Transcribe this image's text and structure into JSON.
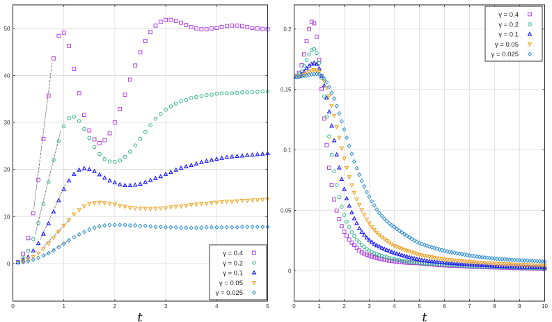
{
  "chart_data": [
    {
      "type": "scatter",
      "xlabel": "t",
      "ylabel": "",
      "xlim": [
        0,
        5
      ],
      "ylim": [
        -8,
        55
      ],
      "xticks": [
        0,
        1,
        2,
        3,
        4,
        5
      ],
      "yticks": [
        0,
        10,
        20,
        30,
        40,
        50
      ],
      "grid": true,
      "legend_position": "bottom-right",
      "x": [
        0.1,
        0.2,
        0.3,
        0.4,
        0.5,
        0.6,
        0.7,
        0.8,
        0.9,
        1.0,
        1.1,
        1.2,
        1.3,
        1.4,
        1.5,
        1.6,
        1.7,
        1.8,
        1.9,
        2.0,
        2.1,
        2.2,
        2.3,
        2.4,
        2.5,
        2.6,
        2.7,
        2.8,
        2.9,
        3.0,
        3.1,
        3.2,
        3.3,
        3.4,
        3.5,
        3.6,
        3.7,
        3.8,
        3.9,
        4.0,
        4.1,
        4.2,
        4.3,
        4.4,
        4.5,
        4.6,
        4.7,
        4.8,
        4.9,
        5.0
      ],
      "series": [
        {
          "name": "γ = 0.4",
          "marker": "square",
          "color": "#b040e0",
          "values": [
            0.3,
            2.1,
            5.4,
            10.7,
            17.8,
            26.5,
            35.7,
            43.6,
            48.4,
            49.1,
            46.3,
            41.4,
            36.2,
            31.6,
            28.3,
            26.4,
            25.6,
            26.2,
            27.7,
            30.0,
            32.8,
            35.9,
            39.1,
            42.1,
            44.9,
            47.3,
            49.2,
            50.6,
            51.4,
            51.8,
            51.8,
            51.6,
            51.2,
            50.7,
            50.3,
            50.0,
            49.8,
            49.8,
            50.0,
            50.1,
            50.3,
            50.5,
            50.6,
            50.6,
            50.5,
            50.3,
            50.1,
            50.0,
            49.9,
            49.8
          ]
        },
        {
          "name": "γ = 0.2",
          "marker": "circle",
          "color": "#2db38a",
          "values": [
            0.3,
            1.2,
            2.7,
            5.2,
            8.6,
            12.7,
            17.3,
            22.0,
            26.0,
            29.2,
            30.9,
            31.2,
            30.3,
            28.6,
            26.7,
            24.8,
            23.3,
            22.2,
            21.7,
            21.6,
            21.9,
            22.7,
            23.8,
            25.1,
            26.5,
            28.0,
            29.4,
            30.8,
            31.8,
            32.7,
            33.4,
            34.0,
            34.5,
            34.8,
            35.2,
            35.4,
            35.6,
            35.8,
            35.9,
            36.1,
            36.2,
            36.2,
            36.2,
            36.3,
            36.4,
            36.4,
            36.5,
            36.5,
            36.6,
            36.6
          ]
        },
        {
          "name": "γ = 0.1",
          "marker": "triangle-up",
          "color": "#2020ff",
          "values": [
            0.2,
            0.8,
            1.4,
            2.7,
            4.3,
            6.3,
            8.5,
            11.0,
            13.4,
            15.8,
            17.6,
            19.0,
            19.9,
            20.2,
            20.0,
            19.6,
            18.9,
            18.2,
            17.6,
            17.2,
            16.8,
            16.6,
            16.6,
            16.7,
            16.9,
            17.3,
            17.7,
            18.1,
            18.5,
            19.0,
            19.4,
            19.9,
            20.3,
            20.6,
            20.9,
            21.2,
            21.5,
            21.8,
            22.0,
            22.2,
            22.4,
            22.6,
            22.7,
            22.8,
            22.9,
            23.0,
            23.1,
            23.2,
            23.3,
            23.4
          ]
        },
        {
          "name": "γ = 0.05",
          "marker": "triangle-down",
          "color": "#f0a830",
          "values": [
            0.2,
            0.5,
            0.9,
            1.4,
            2.2,
            3.1,
            4.3,
            5.5,
            6.8,
            8.1,
            9.3,
            10.5,
            11.4,
            12.2,
            12.7,
            12.9,
            13.0,
            12.9,
            12.8,
            12.6,
            12.3,
            12.1,
            11.9,
            11.8,
            11.7,
            11.7,
            11.6,
            11.7,
            11.8,
            11.8,
            12.0,
            12.1,
            12.2,
            12.3,
            12.5,
            12.6,
            12.7,
            12.8,
            12.9,
            13.0,
            13.1,
            13.2,
            13.2,
            13.3,
            13.4,
            13.4,
            13.5,
            13.5,
            13.6,
            13.7
          ]
        },
        {
          "name": "γ = 0.025",
          "marker": "diamond",
          "color": "#2b8cd6",
          "values": [
            0.2,
            0.3,
            0.5,
            0.8,
            1.2,
            1.7,
            2.2,
            2.8,
            3.5,
            4.2,
            4.9,
            5.6,
            6.2,
            6.7,
            7.2,
            7.6,
            7.9,
            8.1,
            8.2,
            8.2,
            8.2,
            8.2,
            8.1,
            8.1,
            8.0,
            8.0,
            7.9,
            7.8,
            7.8,
            7.7,
            7.7,
            7.7,
            7.6,
            7.6,
            7.6,
            7.6,
            7.6,
            7.7,
            7.7,
            7.7,
            7.7,
            7.7,
            7.7,
            7.7,
            7.8,
            7.8,
            7.8,
            7.8,
            7.8,
            7.8
          ]
        }
      ],
      "fit_lines": [
        {
          "from": [
            0.41,
            11.6
          ],
          "to": [
            0.77,
            42.7
          ]
        },
        {
          "from": [
            0.44,
            6.3
          ],
          "to": [
            0.94,
            28.3
          ]
        },
        {
          "from": [
            0.54,
            5.1
          ],
          "to": [
            1.03,
            16.9
          ]
        },
        {
          "from": [
            0.55,
            2.9
          ],
          "to": [
            1.13,
            9.6
          ]
        },
        {
          "from": [
            0.61,
            1.6
          ],
          "to": [
            1.14,
            5.3
          ]
        }
      ]
    },
    {
      "type": "scatter",
      "xlabel": "t",
      "ylabel": "",
      "xlim": [
        0,
        10
      ],
      "ylim": [
        -0.025,
        0.22
      ],
      "xticks": [
        0,
        1,
        2,
        3,
        4,
        5,
        6,
        7,
        8,
        9,
        10
      ],
      "yticks": [
        0,
        0.05,
        0.1,
        0.15,
        0.2
      ],
      "grid": true,
      "legend_position": "top-right",
      "x": [
        0.1,
        0.2,
        0.3,
        0.4,
        0.5,
        0.6,
        0.7,
        0.8,
        0.9,
        1.0,
        1.1,
        1.2,
        1.3,
        1.4,
        1.5,
        1.6,
        1.7,
        1.8,
        1.9,
        2.0,
        2.1,
        2.2,
        2.3,
        2.4,
        2.5,
        2.6,
        2.7,
        2.8,
        2.9,
        3.0,
        3.1,
        3.2,
        3.3,
        3.4,
        3.5,
        3.6,
        3.7,
        3.8,
        3.9,
        4.0,
        4.1,
        4.2,
        4.3,
        4.4,
        4.5,
        4.6,
        4.7,
        4.8,
        4.9,
        5.0,
        5.1,
        5.2,
        5.3,
        5.4,
        5.5,
        5.6,
        5.7,
        5.8,
        5.9,
        6.0,
        6.1,
        6.2,
        6.3,
        6.4,
        6.5,
        6.6,
        6.7,
        6.8,
        6.9,
        7.0,
        7.1,
        7.2,
        7.3,
        7.4,
        7.5,
        7.6,
        7.7,
        7.8,
        7.9,
        8.0,
        8.1,
        8.2,
        8.3,
        8.4,
        8.5,
        8.6,
        8.7,
        8.8,
        8.9,
        9.0,
        9.1,
        9.2,
        9.3,
        9.4,
        9.5,
        9.6,
        9.7,
        9.8,
        9.9,
        10.0
      ],
      "series": [
        {
          "name": "γ = 0.4",
          "marker": "square",
          "color": "#b040e0",
          "values": [
            0.161,
            0.1638,
            0.17,
            0.179,
            0.19,
            0.1998,
            0.206,
            0.2048,
            0.1937,
            0.1745,
            0.1506,
            0.126,
            0.104,
            0.0853,
            0.071,
            0.0591,
            0.0499,
            0.0428,
            0.037,
            0.0324,
            0.0292,
            0.0259,
            0.0234,
            0.0215,
            0.0192,
            0.0169,
            0.0153,
            0.0143,
            0.0134,
            0.0126,
            0.0119,
            0.0113,
            0.0107,
            0.0102,
            0.0097,
            0.0093,
            0.0089,
            0.0085,
            0.0082,
            0.0079,
            0.0076,
            0.0074,
            0.0072,
            0.007,
            0.0068,
            0.0067,
            0.0066,
            0.0065,
            0.0064,
            0.0063,
            0.0061,
            0.0059,
            0.0057,
            0.0055,
            0.0054,
            0.0052,
            0.005,
            0.0049,
            0.0047,
            0.0046,
            0.0045,
            0.0044,
            0.0043,
            0.0042,
            0.0041,
            0.004,
            0.0039,
            0.0038,
            0.0037,
            0.0036,
            0.0035,
            0.0034,
            0.0034,
            0.0033,
            0.0032,
            0.0032,
            0.0031,
            0.003,
            0.003,
            0.0029,
            0.0028,
            0.0028,
            0.0027,
            0.0027,
            0.0026,
            0.0026,
            0.0025,
            0.0024,
            0.0024,
            0.0023,
            0.0023,
            0.0022,
            0.0022,
            0.0022,
            0.0021,
            0.0021,
            0.002,
            0.002,
            0.0019,
            0.0019
          ]
        },
        {
          "name": "γ = 0.2",
          "marker": "circle",
          "color": "#2db38a",
          "values": [
            0.161,
            0.1625,
            0.165,
            0.1697,
            0.1745,
            0.179,
            0.1826,
            0.1834,
            0.18,
            0.172,
            0.1596,
            0.1442,
            0.1275,
            0.1112,
            0.0961,
            0.0825,
            0.071,
            0.061,
            0.0531,
            0.0462,
            0.0407,
            0.0361,
            0.032,
            0.0288,
            0.0259,
            0.0236,
            0.0215,
            0.0197,
            0.018,
            0.0168,
            0.0157,
            0.0147,
            0.0139,
            0.0131,
            0.0124,
            0.0118,
            0.0112,
            0.0107,
            0.0102,
            0.0097,
            0.0093,
            0.0089,
            0.0085,
            0.0082,
            0.0079,
            0.0076,
            0.0073,
            0.0071,
            0.0069,
            0.0067,
            0.0065,
            0.0063,
            0.0061,
            0.006,
            0.0058,
            0.0057,
            0.0055,
            0.0054,
            0.0052,
            0.0051,
            0.005,
            0.0049,
            0.0048,
            0.0047,
            0.0046,
            0.0045,
            0.0044,
            0.0043,
            0.0041,
            0.004,
            0.0039,
            0.0038,
            0.0038,
            0.0037,
            0.0036,
            0.0035,
            0.0034,
            0.0034,
            0.0033,
            0.0032,
            0.0032,
            0.0031,
            0.0031,
            0.003,
            0.003,
            0.0029,
            0.0029,
            0.0028,
            0.0028,
            0.0027,
            0.0027,
            0.0026,
            0.0026,
            0.0025,
            0.0025,
            0.0024,
            0.0024,
            0.0023,
            0.0023,
            0.0022
          ]
        },
        {
          "name": "γ = 0.1",
          "marker": "triangle-up",
          "color": "#2020ff",
          "values": [
            0.1605,
            0.161,
            0.1625,
            0.1648,
            0.1674,
            0.1695,
            0.171,
            0.172,
            0.1709,
            0.1674,
            0.1611,
            0.1532,
            0.1431,
            0.1316,
            0.1199,
            0.1078,
            0.0961,
            0.0853,
            0.0758,
            0.0675,
            0.0598,
            0.0537,
            0.0482,
            0.0433,
            0.0393,
            0.0351,
            0.0322,
            0.0297,
            0.0274,
            0.0255,
            0.0238,
            0.0222,
            0.021,
            0.02,
            0.019,
            0.0181,
            0.0172,
            0.0164,
            0.0156,
            0.0148,
            0.0142,
            0.0136,
            0.013,
            0.0124,
            0.0118,
            0.0112,
            0.0107,
            0.0102,
            0.0097,
            0.0092,
            0.0089,
            0.0086,
            0.0083,
            0.008,
            0.0078,
            0.0076,
            0.0074,
            0.0072,
            0.007,
            0.0068,
            0.0066,
            0.0064,
            0.0063,
            0.0061,
            0.006,
            0.0058,
            0.0057,
            0.0055,
            0.0054,
            0.0052,
            0.0051,
            0.005,
            0.0049,
            0.0048,
            0.0047,
            0.0046,
            0.0045,
            0.0044,
            0.0042,
            0.0041,
            0.004,
            0.0039,
            0.0038,
            0.0038,
            0.0037,
            0.0036,
            0.0035,
            0.0035,
            0.0034,
            0.0033,
            0.0033,
            0.0032,
            0.0032,
            0.0031,
            0.003,
            0.003,
            0.0029,
            0.0028,
            0.0028,
            0.0027
          ]
        },
        {
          "name": "γ = 0.05",
          "marker": "triangle-down",
          "color": "#f0a830",
          "values": [
            0.1605,
            0.161,
            0.1615,
            0.1625,
            0.1635,
            0.1645,
            0.1655,
            0.1663,
            0.1658,
            0.1645,
            0.1615,
            0.1569,
            0.1515,
            0.1448,
            0.1366,
            0.1285,
            0.1193,
            0.1103,
            0.1015,
            0.093,
            0.0853,
            0.0777,
            0.071,
            0.0646,
            0.0594,
            0.0547,
            0.0505,
            0.0465,
            0.0428,
            0.0395,
            0.0366,
            0.034,
            0.0318,
            0.0298,
            0.028,
            0.0264,
            0.0249,
            0.0235,
            0.0221,
            0.0208,
            0.0199,
            0.0191,
            0.0183,
            0.0175,
            0.0168,
            0.0161,
            0.0154,
            0.0148,
            0.0141,
            0.0134,
            0.013,
            0.0126,
            0.0122,
            0.0118,
            0.0114,
            0.011,
            0.0106,
            0.0103,
            0.01,
            0.0096,
            0.0094,
            0.0092,
            0.009,
            0.0088,
            0.0086,
            0.0084,
            0.0082,
            0.008,
            0.0078,
            0.0076,
            0.0074,
            0.0073,
            0.0071,
            0.007,
            0.0069,
            0.0067,
            0.0066,
            0.0065,
            0.0063,
            0.0062,
            0.0061,
            0.006,
            0.0059,
            0.0058,
            0.0057,
            0.0056,
            0.0055,
            0.0054,
            0.0053,
            0.0052,
            0.0051,
            0.005,
            0.005,
            0.0049,
            0.0048,
            0.0047,
            0.0046,
            0.0046,
            0.0045,
            0.0044
          ]
        },
        {
          "name": "γ = 0.025",
          "marker": "diamond",
          "color": "#2b8cd6",
          "values": [
            0.1605,
            0.1606,
            0.161,
            0.1613,
            0.1617,
            0.162,
            0.1624,
            0.1627,
            0.1628,
            0.1627,
            0.1615,
            0.159,
            0.156,
            0.1521,
            0.1473,
            0.1425,
            0.1364,
            0.1302,
            0.1237,
            0.117,
            0.1101,
            0.1034,
            0.0968,
            0.0905,
            0.085,
            0.0796,
            0.0744,
            0.0698,
            0.0652,
            0.0614,
            0.0575,
            0.0541,
            0.0508,
            0.048,
            0.0455,
            0.0432,
            0.0411,
            0.0393,
            0.0377,
            0.0364,
            0.0348,
            0.0332,
            0.0318,
            0.0304,
            0.029,
            0.0277,
            0.0264,
            0.0252,
            0.0241,
            0.023,
            0.0222,
            0.0215,
            0.0208,
            0.0201,
            0.0195,
            0.0189,
            0.0183,
            0.0177,
            0.0172,
            0.0166,
            0.0162,
            0.0158,
            0.0154,
            0.015,
            0.0146,
            0.0142,
            0.0138,
            0.0135,
            0.0131,
            0.0128,
            0.0125,
            0.0122,
            0.0119,
            0.0116,
            0.0113,
            0.0111,
            0.0109,
            0.0106,
            0.0104,
            0.0102,
            0.01,
            0.0099,
            0.0097,
            0.0096,
            0.0094,
            0.0093,
            0.0092,
            0.009,
            0.0089,
            0.0088,
            0.0087,
            0.0086,
            0.0085,
            0.0084,
            0.0083,
            0.0082,
            0.0081,
            0.008,
            0.0078,
            0.0077
          ]
        }
      ]
    }
  ]
}
